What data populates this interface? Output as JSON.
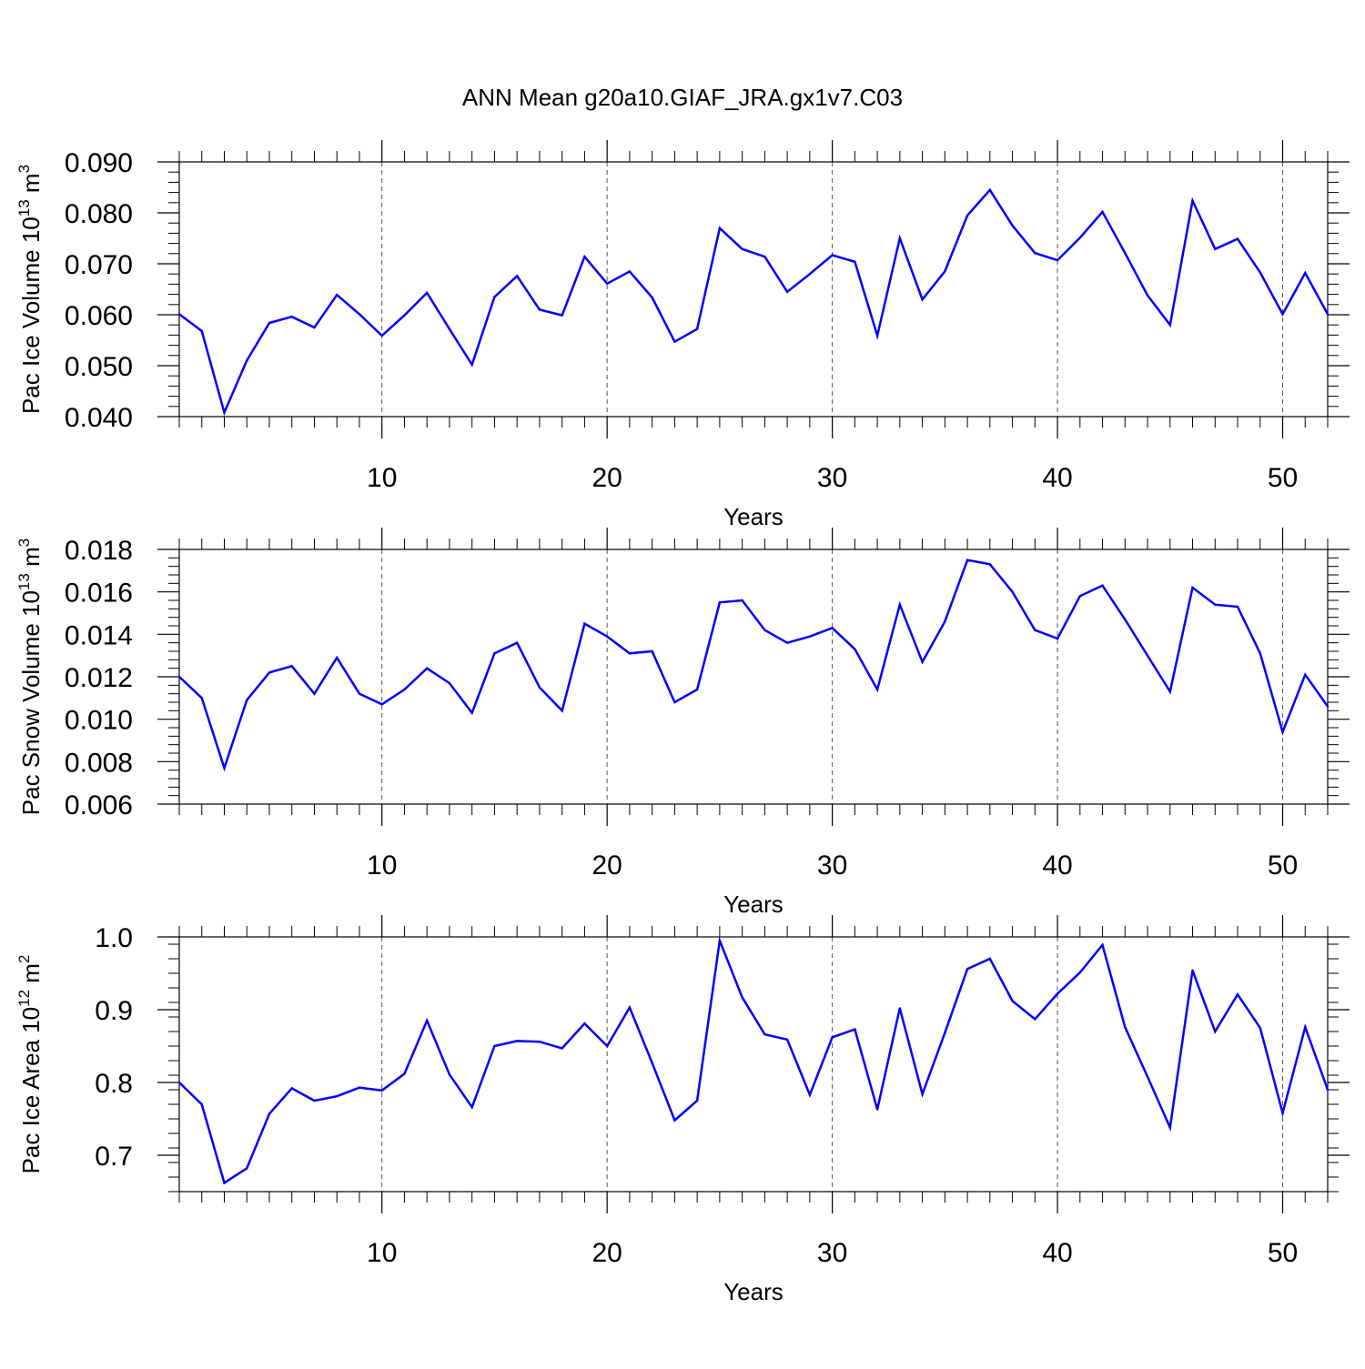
{
  "title": "ANN Mean g20a10.GIAF_JRA.gx1v7.C03",
  "line_color": "#0000ff",
  "chart_data": [
    {
      "type": "line",
      "xlabel": "Years",
      "ylabel": {
        "base": "Pac Ice Volume 10",
        "exp": "13",
        "unit": " m",
        "unit_exp": "3"
      },
      "xlim": [
        1,
        52
      ],
      "ylim": [
        0.04,
        0.09
      ],
      "xticks": [
        10,
        20,
        30,
        40,
        50
      ],
      "yticks": [
        "0.040",
        "0.050",
        "0.060",
        "0.070",
        "0.080",
        "0.090"
      ],
      "series": [
        {
          "x": [
            1,
            2,
            3,
            4,
            5,
            6,
            7,
            8,
            9,
            10,
            11,
            12,
            13,
            14,
            15,
            16,
            17,
            18,
            19,
            20,
            21,
            22,
            23,
            24,
            25,
            26,
            27,
            28,
            29,
            30,
            31,
            32,
            33,
            34,
            35,
            36,
            37,
            38,
            39,
            40,
            41,
            42,
            43,
            44,
            45,
            46,
            47,
            48,
            49,
            50,
            51,
            52
          ],
          "values": [
            0.0601,
            0.0568,
            0.0408,
            0.051,
            0.0584,
            0.0596,
            0.0575,
            0.0639,
            0.0601,
            0.0559,
            0.0599,
            0.0643,
            0.0572,
            0.0502,
            0.0635,
            0.0676,
            0.061,
            0.0599,
            0.0714,
            0.0661,
            0.0685,
            0.0634,
            0.0547,
            0.0572,
            0.077,
            0.0729,
            0.0714,
            0.0645,
            0.068,
            0.0717,
            0.0704,
            0.0559,
            0.075,
            0.063,
            0.0685,
            0.0795,
            0.0845,
            0.0775,
            0.0721,
            0.0707,
            0.0751,
            0.0802,
            0.0721,
            0.0638,
            0.058,
            0.0824,
            0.0729,
            0.0749,
            0.0683,
            0.0601,
            0.0682,
            0.0601
          ]
        }
      ]
    },
    {
      "type": "line",
      "xlabel": "Years",
      "ylabel": {
        "base": "Pac Snow Volume 10",
        "exp": "13",
        "unit": " m",
        "unit_exp": "3"
      },
      "xlim": [
        1,
        52
      ],
      "ylim": [
        0.006,
        0.018
      ],
      "xticks": [
        10,
        20,
        30,
        40,
        50
      ],
      "yticks": [
        "0.006",
        "0.008",
        "0.010",
        "0.012",
        "0.014",
        "0.016",
        "0.018"
      ],
      "series": [
        {
          "x": [
            1,
            2,
            3,
            4,
            5,
            6,
            7,
            8,
            9,
            10,
            11,
            12,
            13,
            14,
            15,
            16,
            17,
            18,
            19,
            20,
            21,
            22,
            23,
            24,
            25,
            26,
            27,
            28,
            29,
            30,
            31,
            32,
            33,
            34,
            35,
            36,
            37,
            38,
            39,
            40,
            41,
            42,
            43,
            44,
            45,
            46,
            47,
            48,
            49,
            50,
            51,
            52
          ],
          "values": [
            0.012,
            0.011,
            0.0077,
            0.0109,
            0.0122,
            0.0125,
            0.0112,
            0.0129,
            0.0112,
            0.0107,
            0.0114,
            0.0124,
            0.0117,
            0.0103,
            0.0131,
            0.0136,
            0.0115,
            0.0104,
            0.0145,
            0.0139,
            0.0131,
            0.0132,
            0.0108,
            0.0114,
            0.0155,
            0.0156,
            0.0142,
            0.0136,
            0.0139,
            0.0143,
            0.0133,
            0.0114,
            0.0154,
            0.0127,
            0.0146,
            0.0175,
            0.0173,
            0.016,
            0.0142,
            0.0138,
            0.0158,
            0.0163,
            0.0147,
            0.013,
            0.0113,
            0.0162,
            0.0154,
            0.0153,
            0.0131,
            0.0094,
            0.0121,
            0.0106
          ]
        }
      ]
    },
    {
      "type": "line",
      "xlabel": "Years",
      "ylabel": {
        "base": "Pac Ice Area 10",
        "exp": "12",
        "unit": " m",
        "unit_exp": "2"
      },
      "xlim": [
        1,
        52
      ],
      "ylim": [
        0.65,
        1.0
      ],
      "xticks": [
        10,
        20,
        30,
        40,
        50
      ],
      "yticks": [
        "0.7",
        "0.8",
        "0.9",
        "1.0"
      ],
      "series": [
        {
          "x": [
            1,
            2,
            3,
            4,
            5,
            6,
            7,
            8,
            9,
            10,
            11,
            12,
            13,
            14,
            15,
            16,
            17,
            18,
            19,
            20,
            21,
            22,
            23,
            24,
            25,
            26,
            27,
            28,
            29,
            30,
            31,
            32,
            33,
            34,
            35,
            36,
            37,
            38,
            39,
            40,
            41,
            42,
            43,
            44,
            45,
            46,
            47,
            48,
            49,
            50,
            51,
            52
          ],
          "values": [
            0.8,
            0.77,
            0.662,
            0.682,
            0.757,
            0.792,
            0.775,
            0.781,
            0.793,
            0.789,
            0.812,
            0.885,
            0.811,
            0.766,
            0.85,
            0.857,
            0.856,
            0.847,
            0.881,
            0.85,
            0.903,
            0.827,
            0.748,
            0.775,
            0.995,
            0.917,
            0.866,
            0.859,
            0.783,
            0.862,
            0.873,
            0.763,
            0.902,
            0.784,
            0.868,
            0.956,
            0.97,
            0.912,
            0.887,
            0.922,
            0.951,
            0.989,
            0.876,
            0.808,
            0.738,
            0.954,
            0.87,
            0.921,
            0.875,
            0.758,
            0.876,
            0.79
          ]
        }
      ]
    }
  ]
}
